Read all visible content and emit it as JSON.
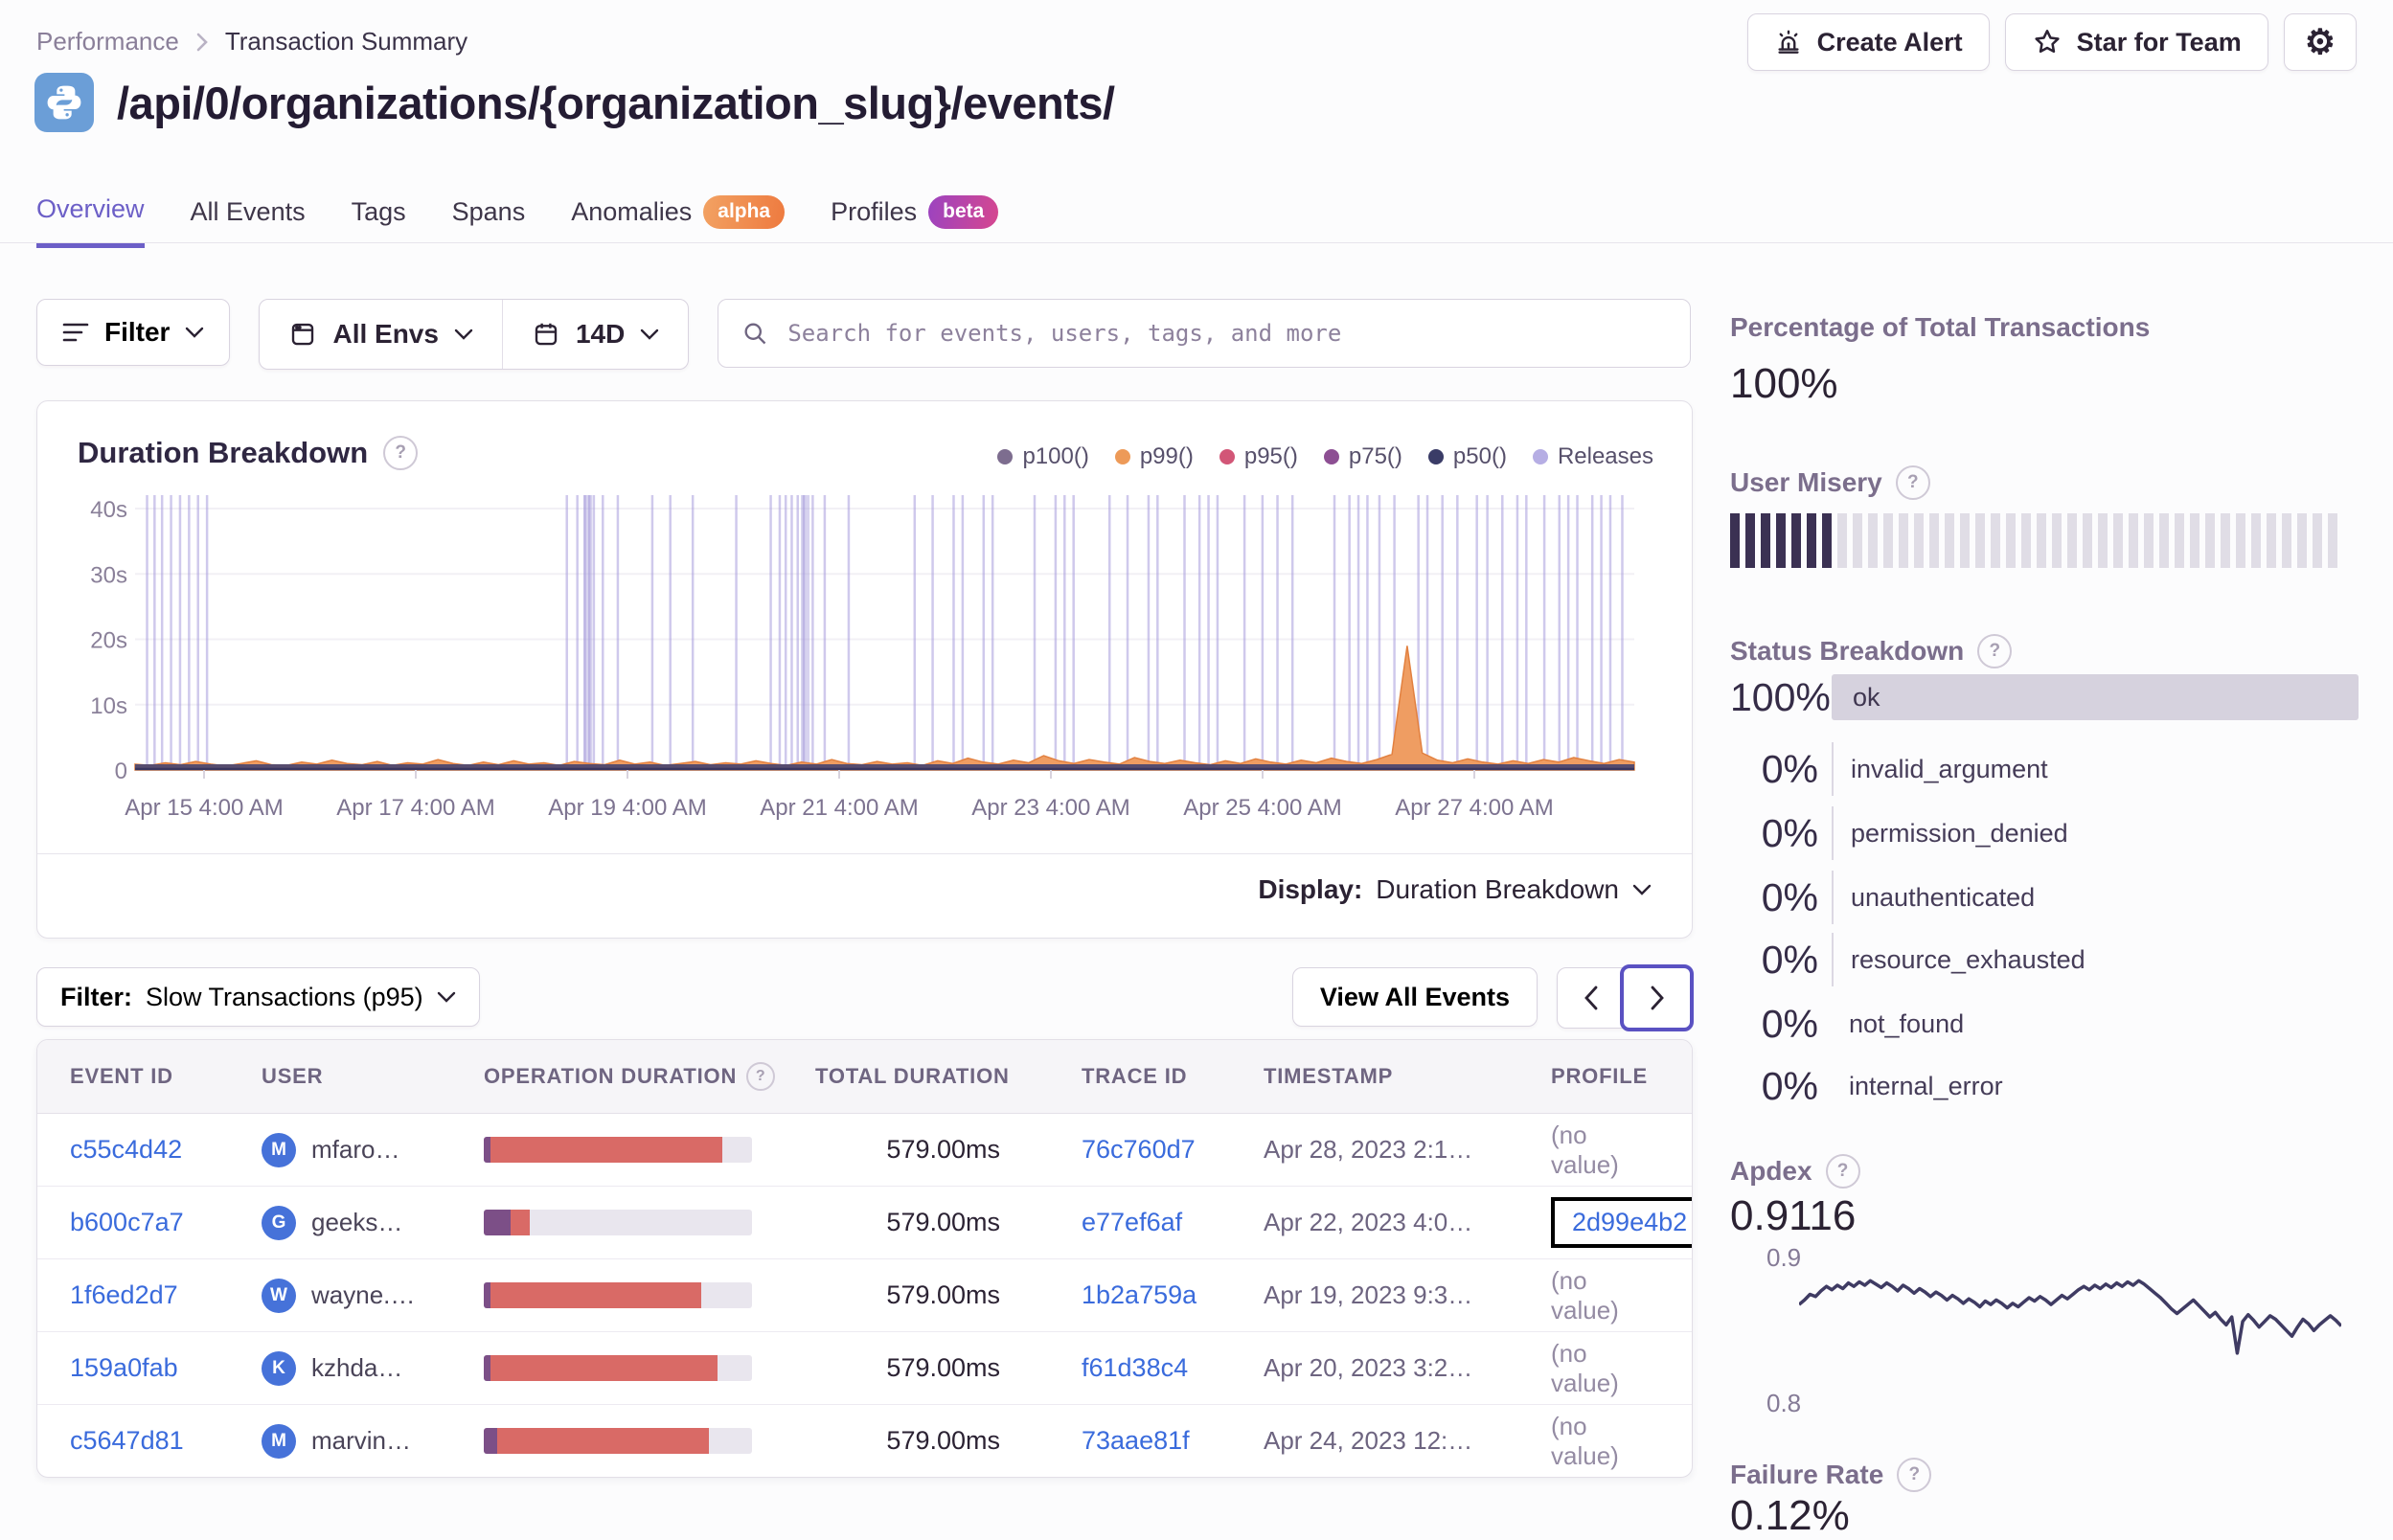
{
  "colors": {
    "accent": "#6c5fc7",
    "link": "#3a6bdc",
    "bar_red": "#d96a66",
    "bar_purple": "#7c4f87",
    "misery_filled": "#3b3153",
    "misery_empty": "#e0dde6",
    "release": "#aaa0dc",
    "area_orange": "#ef9d62",
    "line_navy": "#3f3b63",
    "ok_bar": "#d6d2de"
  },
  "breadcrumb": {
    "performance": "Performance",
    "current": "Transaction Summary"
  },
  "header": {
    "title": "/api/0/organizations/{organization_slug}/events/",
    "create_alert": "Create Alert",
    "star_for_team": "Star for Team"
  },
  "tabs": [
    {
      "label": "Overview",
      "active": true
    },
    {
      "label": "All Events"
    },
    {
      "label": "Tags"
    },
    {
      "label": "Spans"
    },
    {
      "label": "Anomalies",
      "badge": "alpha"
    },
    {
      "label": "Profiles",
      "badge": "beta"
    }
  ],
  "toolbar": {
    "filter": "Filter",
    "envs": "All Envs",
    "range": "14D",
    "search_placeholder": "Search for events, users, tags, and more"
  },
  "chart_panel": {
    "title": "Duration Breakdown",
    "display_label": "Display:",
    "display_value": "Duration Breakdown"
  },
  "chart_data": [
    {
      "type": "area",
      "title": "Duration Breakdown",
      "legend": [
        {
          "name": "p100()",
          "color": "#7d6d8f"
        },
        {
          "name": "p99()",
          "color": "#ed9a58"
        },
        {
          "name": "p95()",
          "color": "#d25677"
        },
        {
          "name": "p75()",
          "color": "#8d4f93"
        },
        {
          "name": "p50()",
          "color": "#3a3c67"
        },
        {
          "name": "Releases",
          "color": "#b6aee4"
        }
      ],
      "ylim": [
        0,
        40
      ],
      "y_ticks": [
        "40s",
        "30s",
        "20s",
        "10s",
        "0"
      ],
      "x_ticks": [
        "Apr 15 4:00 AM",
        "Apr 17 4:00 AM",
        "Apr 19 4:00 AM",
        "Apr 21 4:00 AM",
        "Apr 23 4:00 AM",
        "Apr 25 4:00 AM",
        "Apr 27 4:00 AM"
      ],
      "p99_profile_seconds": [
        0.9,
        0.7,
        1.1,
        0.8,
        1.3,
        0.9,
        0.6,
        1.0,
        1.4,
        0.8,
        0.7,
        1.2,
        0.9,
        1.5,
        1.0,
        0.8,
        1.3,
        0.7,
        1.1,
        0.9,
        1.6,
        1.0,
        0.7,
        1.2,
        0.8,
        1.4,
        0.9,
        1.1,
        0.7,
        1.3,
        1.0,
        0.8,
        1.5,
        0.9,
        1.2,
        0.7,
        1.0,
        1.3,
        0.8,
        1.1,
        0.9,
        1.4,
        1.0,
        0.7,
        1.2,
        0.9,
        1.6,
        1.0,
        0.8,
        1.3,
        0.9,
        1.1,
        0.7,
        1.4,
        1.0,
        1.8,
        1.2,
        0.9,
        1.5,
        1.1,
        2.2,
        1.4,
        1.0,
        1.6,
        1.2,
        0.9,
        1.9,
        1.3,
        1.0,
        1.5,
        1.1,
        0.8,
        1.4,
        1.0,
        1.7,
        1.2,
        0.9,
        1.5,
        1.1,
        1.8,
        1.3,
        1.0,
        1.6,
        2.4,
        19.0,
        2.6,
        1.5,
        1.1,
        1.7,
        1.2,
        0.9,
        1.4,
        1.0,
        1.6,
        1.2,
        1.9,
        1.4,
        1.0,
        1.6,
        1.2
      ],
      "p50_baseline_seconds": 0.35,
      "releases_x": [
        0.008,
        0.013,
        0.018,
        0.024,
        0.03,
        0.036,
        0.042,
        0.048,
        0.288,
        0.295,
        0.3,
        0.303,
        0.306,
        0.312,
        0.322,
        0.345,
        0.357,
        0.372,
        0.401,
        0.424,
        0.43,
        0.434,
        0.438,
        0.442,
        0.446,
        0.452,
        0.46,
        0.476,
        0.52,
        0.532,
        0.546,
        0.552,
        0.566,
        0.572,
        0.6,
        0.614,
        0.62,
        0.626,
        0.65,
        0.662,
        0.676,
        0.682,
        0.7,
        0.71,
        0.716,
        0.722,
        0.74,
        0.752,
        0.762,
        0.772,
        0.8,
        0.81,
        0.816,
        0.822,
        0.83,
        0.84,
        0.856,
        0.862,
        0.872,
        0.882,
        0.895,
        0.902,
        0.912,
        0.922,
        0.928,
        0.94,
        0.95,
        0.956,
        0.962,
        0.972,
        0.978,
        0.984,
        0.992
      ],
      "releases_wide_x": [
        0.302,
        0.447
      ]
    },
    {
      "type": "line",
      "title": "Apdex",
      "value": "0.9116",
      "ylim": [
        0.795,
        0.905
      ],
      "y_ticks": [
        "0.9",
        "0.8"
      ],
      "values": [
        0.866,
        0.87,
        0.875,
        0.873,
        0.878,
        0.882,
        0.879,
        0.883,
        0.88,
        0.885,
        0.882,
        0.886,
        0.883,
        0.887,
        0.884,
        0.881,
        0.885,
        0.882,
        0.878,
        0.883,
        0.88,
        0.876,
        0.88,
        0.877,
        0.873,
        0.877,
        0.874,
        0.87,
        0.874,
        0.871,
        0.867,
        0.871,
        0.868,
        0.864,
        0.869,
        0.866,
        0.87,
        0.867,
        0.863,
        0.867,
        0.864,
        0.868,
        0.872,
        0.869,
        0.873,
        0.87,
        0.866,
        0.87,
        0.874,
        0.871,
        0.875,
        0.879,
        0.882,
        0.879,
        0.883,
        0.88,
        0.884,
        0.881,
        0.885,
        0.882,
        0.886,
        0.883,
        0.887,
        0.884,
        0.88,
        0.876,
        0.872,
        0.867,
        0.862,
        0.858,
        0.862,
        0.866,
        0.87,
        0.865,
        0.86,
        0.855,
        0.859,
        0.853,
        0.848,
        0.855,
        0.823,
        0.851,
        0.857,
        0.852,
        0.846,
        0.851,
        0.856,
        0.853,
        0.848,
        0.843,
        0.838,
        0.846,
        0.853,
        0.849,
        0.843,
        0.848,
        0.852,
        0.856,
        0.852,
        0.847
      ]
    }
  ],
  "events_toolbar": {
    "filter_label": "Filter:",
    "filter_value": "Slow Transactions (p95)",
    "view_all": "View All Events"
  },
  "table": {
    "columns": [
      "EVENT ID",
      "USER",
      "OPERATION DURATION",
      "TOTAL DURATION",
      "TRACE ID",
      "TIMESTAMP",
      "PROFILE"
    ],
    "rows": [
      {
        "event_id": "c55c4d42",
        "user_initial": "M",
        "user": "mfaro…",
        "bar_purple": 0.025,
        "bar_red": 0.865,
        "total": "579.00ms",
        "trace": "76c760d7",
        "timestamp": "Apr 28, 2023 2:1…",
        "profile": "(no value)",
        "profile_is_link": false,
        "profile_highlight": false
      },
      {
        "event_id": "b600c7a7",
        "user_initial": "G",
        "user": "geeks…",
        "bar_purple": 0.1,
        "bar_red": 0.07,
        "total": "579.00ms",
        "trace": "e77ef6af",
        "timestamp": "Apr 22, 2023 4:0…",
        "profile": "2d99e4b2",
        "profile_is_link": true,
        "profile_highlight": true
      },
      {
        "event_id": "1f6ed2d7",
        "user_initial": "W",
        "user": "wayne.…",
        "bar_purple": 0.025,
        "bar_red": 0.785,
        "total": "579.00ms",
        "trace": "1b2a759a",
        "timestamp": "Apr 19, 2023 9:3…",
        "profile": "(no value)",
        "profile_is_link": false,
        "profile_highlight": false
      },
      {
        "event_id": "159a0fab",
        "user_initial": "K",
        "user": "kzhda…",
        "bar_purple": 0.025,
        "bar_red": 0.845,
        "total": "579.00ms",
        "trace": "f61d38c4",
        "timestamp": "Apr 20, 2023 3:2…",
        "profile": "(no value)",
        "profile_is_link": false,
        "profile_highlight": false
      },
      {
        "event_id": "c5647d81",
        "user_initial": "M",
        "user": "marvin…",
        "bar_purple": 0.05,
        "bar_red": 0.79,
        "total": "579.00ms",
        "trace": "73aae81f",
        "timestamp": "Apr 24, 2023 12:…",
        "profile": "(no value)",
        "profile_is_link": false,
        "profile_highlight": false
      }
    ]
  },
  "sidebar": {
    "pct_total_title": "Percentage of Total Transactions",
    "pct_total_value": "100%",
    "user_misery": {
      "title": "User Misery",
      "segments": 40,
      "filled": 7
    },
    "status_breakdown": {
      "title": "Status Breakdown",
      "rows": [
        {
          "pct": "100%",
          "label": "ok",
          "bar": true
        },
        {
          "pct": "0%",
          "label": "invalid_argument",
          "axis": true
        },
        {
          "pct": "0%",
          "label": "permission_denied",
          "axis": true
        },
        {
          "pct": "0%",
          "label": "unauthenticated",
          "axis": true
        },
        {
          "pct": "0%",
          "label": "resource_exhausted",
          "axis": true
        },
        {
          "pct": "0%",
          "label": "not_found",
          "axis": false
        },
        {
          "pct": "0%",
          "label": "internal_error",
          "axis": false
        }
      ]
    },
    "apdex": {
      "title": "Apdex",
      "value": "0.9116",
      "y_hi": "0.9",
      "y_lo": "0.8"
    },
    "failure_rate": {
      "title": "Failure Rate",
      "value": "0.12%"
    }
  }
}
